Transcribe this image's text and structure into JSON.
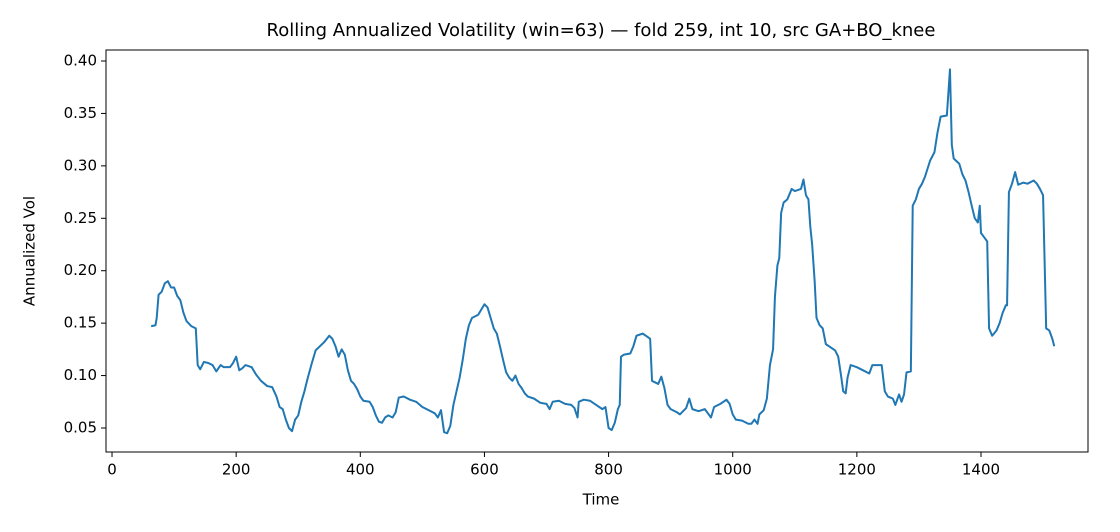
{
  "chart_data": {
    "type": "line",
    "title": "Rolling Annualized Volatility (win=63) — fold 259, int 10, src GA+BO_knee",
    "xlabel": "Time",
    "ylabel": "Annualized Vol",
    "color": "#1f77b4",
    "xlim": [
      -9.7,
      1572.4
    ],
    "ylim": [
      0.0271,
      0.4105
    ],
    "xticks": [
      0,
      200,
      400,
      600,
      800,
      1000,
      1200,
      1400
    ],
    "yticks": [
      0.05,
      {
        "value": 0.1,
        "label": "0.10"
      },
      0.15,
      {
        "value": 0.2,
        "label": "0.20"
      },
      0.25,
      {
        "value": 0.3,
        "label": "0.30"
      },
      0.35,
      {
        "value": 0.4,
        "label": "0.40"
      }
    ],
    "x": [
      63,
      70,
      72,
      75,
      80,
      85,
      90,
      95,
      100,
      105,
      110,
      115,
      120,
      128,
      135,
      138,
      142,
      148,
      155,
      162,
      168,
      175,
      180,
      190,
      195,
      200,
      205,
      210,
      215,
      225,
      232,
      240,
      250,
      258,
      265,
      270,
      275,
      280,
      285,
      290,
      295,
      300,
      305,
      310,
      315,
      322,
      328,
      335,
      342,
      350,
      355,
      360,
      365,
      370,
      375,
      380,
      385,
      390,
      395,
      400,
      405,
      415,
      420,
      425,
      430,
      435,
      440,
      445,
      452,
      457,
      462,
      470,
      480,
      490,
      500,
      510,
      520,
      525,
      530,
      535,
      540,
      545,
      550,
      555,
      560,
      565,
      570,
      575,
      580,
      590,
      595,
      600,
      605,
      610,
      615,
      620,
      625,
      630,
      635,
      640,
      645,
      650,
      655,
      660,
      665,
      670,
      680,
      690,
      700,
      705,
      710,
      720,
      730,
      740,
      745,
      750,
      752,
      760,
      770,
      780,
      790,
      795,
      800,
      805,
      810,
      815,
      818,
      820,
      825,
      835,
      840,
      845,
      855,
      860,
      867,
      870,
      880,
      885,
      890,
      895,
      900,
      910,
      915,
      925,
      930,
      935,
      945,
      955,
      960,
      965,
      970,
      980,
      985,
      990,
      995,
      1000,
      1005,
      1015,
      1025,
      1030,
      1035,
      1040,
      1043,
      1050,
      1055,
      1060,
      1065,
      1068,
      1072,
      1075,
      1078,
      1082,
      1088,
      1095,
      1100,
      1110,
      1114,
      1118,
      1122,
      1125,
      1128,
      1132,
      1135,
      1140,
      1145,
      1150,
      1155,
      1165,
      1170,
      1175,
      1178,
      1182,
      1185,
      1190,
      1200,
      1210,
      1220,
      1225,
      1240,
      1245,
      1250,
      1258,
      1262,
      1268,
      1272,
      1276,
      1280,
      1287,
      1290,
      1295,
      1300,
      1305,
      1310,
      1318,
      1325,
      1330,
      1335,
      1345,
      1350,
      1353,
      1356,
      1365,
      1370,
      1375,
      1380,
      1385,
      1390,
      1395,
      1398,
      1400,
      1405,
      1410,
      1413,
      1418,
      1425,
      1430,
      1435,
      1440,
      1442,
      1445,
      1450,
      1455,
      1460,
      1468,
      1475,
      1485,
      1490,
      1495,
      1500,
      1505,
      1510,
      1515,
      1518
    ],
    "values": [
      0.147,
      0.148,
      0.155,
      0.177,
      0.18,
      0.188,
      0.19,
      0.184,
      0.184,
      0.176,
      0.172,
      0.16,
      0.152,
      0.147,
      0.145,
      0.11,
      0.106,
      0.113,
      0.112,
      0.11,
      0.104,
      0.11,
      0.108,
      0.108,
      0.112,
      0.118,
      0.105,
      0.107,
      0.11,
      0.108,
      0.101,
      0.095,
      0.09,
      0.089,
      0.08,
      0.07,
      0.068,
      0.058,
      0.05,
      0.047,
      0.058,
      0.062,
      0.075,
      0.085,
      0.097,
      0.112,
      0.124,
      0.128,
      0.132,
      0.138,
      0.135,
      0.128,
      0.118,
      0.125,
      0.12,
      0.105,
      0.095,
      0.092,
      0.087,
      0.08,
      0.076,
      0.075,
      0.07,
      0.062,
      0.056,
      0.055,
      0.06,
      0.062,
      0.06,
      0.065,
      0.079,
      0.08,
      0.077,
      0.075,
      0.07,
      0.067,
      0.064,
      0.06,
      0.067,
      0.046,
      0.045,
      0.052,
      0.072,
      0.085,
      0.098,
      0.115,
      0.135,
      0.148,
      0.155,
      0.158,
      0.163,
      0.168,
      0.165,
      0.155,
      0.145,
      0.14,
      0.128,
      0.115,
      0.103,
      0.098,
      0.095,
      0.1,
      0.092,
      0.088,
      0.083,
      0.08,
      0.078,
      0.074,
      0.073,
      0.068,
      0.075,
      0.076,
      0.073,
      0.072,
      0.069,
      0.06,
      0.075,
      0.077,
      0.076,
      0.072,
      0.068,
      0.07,
      0.05,
      0.048,
      0.055,
      0.068,
      0.072,
      0.118,
      0.12,
      0.121,
      0.128,
      0.138,
      0.14,
      0.138,
      0.135,
      0.095,
      0.092,
      0.099,
      0.088,
      0.072,
      0.068,
      0.065,
      0.063,
      0.069,
      0.078,
      0.068,
      0.066,
      0.068,
      0.064,
      0.06,
      0.07,
      0.073,
      0.075,
      0.077,
      0.073,
      0.063,
      0.058,
      0.057,
      0.054,
      0.054,
      0.058,
      0.054,
      0.063,
      0.067,
      0.078,
      0.11,
      0.125,
      0.175,
      0.205,
      0.212,
      0.255,
      0.265,
      0.268,
      0.278,
      0.276,
      0.278,
      0.287,
      0.272,
      0.268,
      0.242,
      0.225,
      0.19,
      0.155,
      0.148,
      0.145,
      0.13,
      0.128,
      0.124,
      0.118,
      0.098,
      0.085,
      0.083,
      0.098,
      0.11,
      0.108,
      0.105,
      0.102,
      0.11,
      0.11,
      0.085,
      0.08,
      0.078,
      0.072,
      0.082,
      0.075,
      0.082,
      0.103,
      0.104,
      0.262,
      0.268,
      0.278,
      0.283,
      0.29,
      0.305,
      0.313,
      0.332,
      0.347,
      0.348,
      0.392,
      0.32,
      0.307,
      0.302,
      0.292,
      0.286,
      0.275,
      0.262,
      0.25,
      0.246,
      0.262,
      0.236,
      0.232,
      0.228,
      0.145,
      0.138,
      0.143,
      0.15,
      0.16,
      0.167,
      0.167,
      0.275,
      0.283,
      0.294,
      0.282,
      0.284,
      0.283,
      0.286,
      0.283,
      0.278,
      0.272,
      0.145,
      0.143,
      0.135,
      0.128
    ]
  }
}
